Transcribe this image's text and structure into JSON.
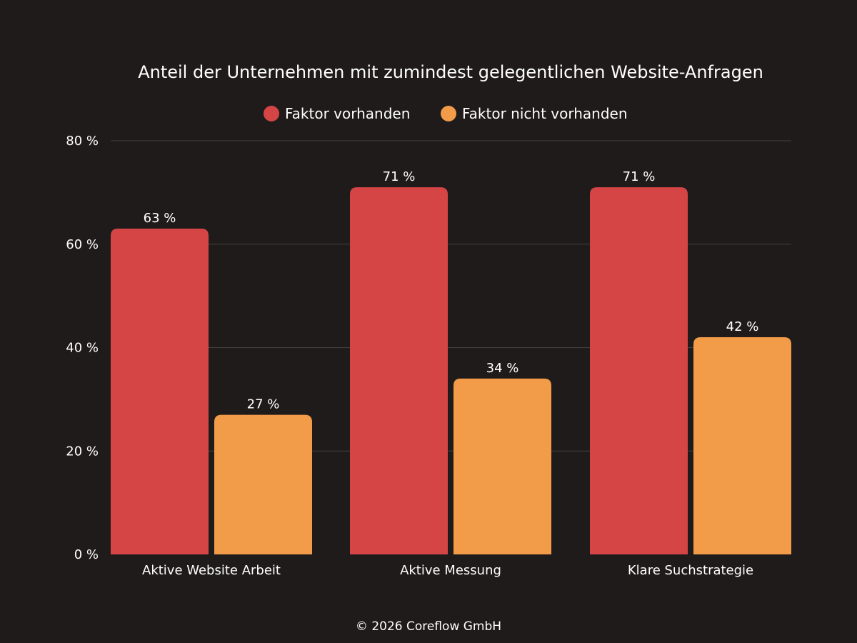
{
  "colors": {
    "background": "#1f1b1b",
    "series_present": "#d64545",
    "series_absent": "#f29b48",
    "text": "#ffffff",
    "grid": "#444040"
  },
  "footer": "© 2026 Coreflow GmbH",
  "chart_data": {
    "type": "bar",
    "title": "Anteil der Unternehmen mit zumindest gelegentlichen Website-Anfragen",
    "categories": [
      "Aktive Website Arbeit",
      "Aktive Messung",
      "Klare Suchstrategie"
    ],
    "series": [
      {
        "name": "Faktor vorhanden",
        "values": [
          63,
          71,
          71
        ],
        "labels": [
          "63 %",
          "71 %",
          "71 %"
        ]
      },
      {
        "name": "Faktor nicht vorhanden",
        "values": [
          27,
          34,
          42
        ],
        "labels": [
          "27 %",
          "34 %",
          "42 %"
        ]
      }
    ],
    "yticks": [
      0,
      20,
      40,
      60,
      80
    ],
    "ytick_labels": [
      "0 %",
      "20 %",
      "40 %",
      "60 %",
      "80 %"
    ],
    "ylim": [
      0,
      80
    ],
    "xlabel": "",
    "ylabel": "",
    "grid": true,
    "legend_position": "top-center"
  }
}
